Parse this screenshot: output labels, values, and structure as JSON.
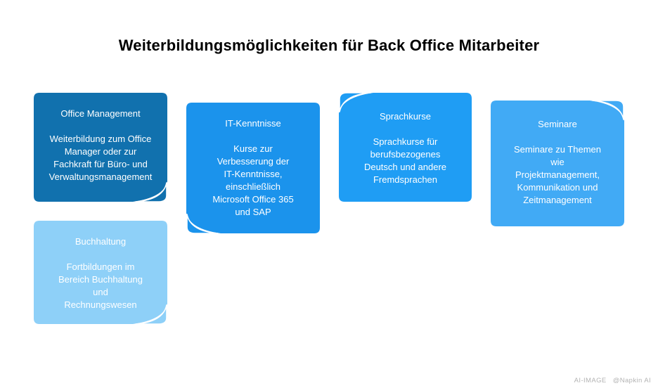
{
  "page": {
    "title": "Weiterbildungsmöglichkeiten für Back Office Mitarbeiter"
  },
  "colors": {
    "background": "#ffffff",
    "title_text": "#000000",
    "note_text": "#ffffff",
    "watermark_text": "#b3b3b3"
  },
  "cards": [
    {
      "title": "Office Management",
      "body": "Weiterbildung zum Office\nManager oder zur\nFachkraft für Büro- und\nVerwaltungsmanagement",
      "color": "#1171ae",
      "curl": "bottom-right"
    },
    {
      "title": "IT-Kenntnisse",
      "body": "Kurse zur\nVerbesserung der\nIT-Kenntnisse,\neinschließlich\nMicrosoft Office 365\nund SAP",
      "color": "#1b93ec",
      "curl": "bottom-left"
    },
    {
      "title": "Sprachkurse",
      "body": "Sprachkurse für\nberufsbezogenes\nDeutsch und andere\nFremdsprachen",
      "color": "#1f9df4",
      "curl": "top-left"
    },
    {
      "title": "Seminare",
      "body": "Seminare zu Themen\nwie\nProjektmanagement,\nKommunikation und\nZeitmanagement",
      "color": "#41aaf5",
      "curl": "top-right"
    },
    {
      "title": "Buchhaltung",
      "body": "Fortbildungen im\nBereich Buchhaltung\nund\nRechnungswesen",
      "color": "#8ed0f8",
      "curl": "bottom-right"
    }
  ],
  "watermark": {
    "left": "AI-IMAGE",
    "right": "@Napkin AI"
  }
}
